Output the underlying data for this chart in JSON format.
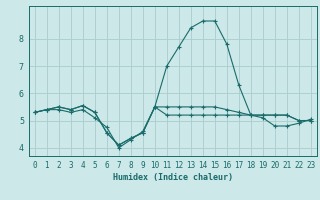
{
  "title": "",
  "xlabel": "Humidex (Indice chaleur)",
  "ylabel": "",
  "background_color": "#cce8e8",
  "grid_color": "#aacccc",
  "line_color": "#1a6b6b",
  "x_values": [
    0,
    1,
    2,
    3,
    4,
    5,
    6,
    7,
    8,
    9,
    10,
    11,
    12,
    13,
    14,
    15,
    16,
    17,
    18,
    19,
    20,
    21,
    22,
    23
  ],
  "xlim": [
    -0.5,
    23.5
  ],
  "ylim": [
    3.7,
    9.2
  ],
  "yticks": [
    4,
    5,
    6,
    7,
    8
  ],
  "xticks": [
    0,
    1,
    2,
    3,
    4,
    5,
    6,
    7,
    8,
    9,
    10,
    11,
    12,
    13,
    14,
    15,
    16,
    17,
    18,
    19,
    20,
    21,
    22,
    23
  ],
  "line1": [
    5.3,
    5.4,
    5.4,
    5.3,
    5.4,
    5.1,
    4.75,
    4.0,
    4.3,
    4.6,
    5.5,
    5.2,
    5.2,
    5.2,
    5.2,
    5.2,
    5.2,
    5.2,
    5.2,
    5.1,
    4.8,
    4.8,
    4.9,
    5.05
  ],
  "line2": [
    5.3,
    5.4,
    5.5,
    5.4,
    5.55,
    5.3,
    4.55,
    4.1,
    4.35,
    4.55,
    5.5,
    5.5,
    5.5,
    5.5,
    5.5,
    5.5,
    5.4,
    5.3,
    5.2,
    5.2,
    5.2,
    5.2,
    5.0,
    5.0
  ],
  "line3": [
    5.3,
    5.4,
    5.5,
    5.4,
    5.55,
    5.3,
    4.55,
    4.1,
    4.35,
    4.55,
    5.5,
    7.0,
    7.7,
    8.4,
    8.65,
    8.65,
    7.8,
    6.3,
    5.2,
    5.2,
    5.2,
    5.2,
    5.0,
    5.0
  ],
  "marker": "+",
  "marker_size": 3.5,
  "linewidth": 0.8,
  "tick_fontsize": 5.5,
  "xlabel_fontsize": 6.0
}
